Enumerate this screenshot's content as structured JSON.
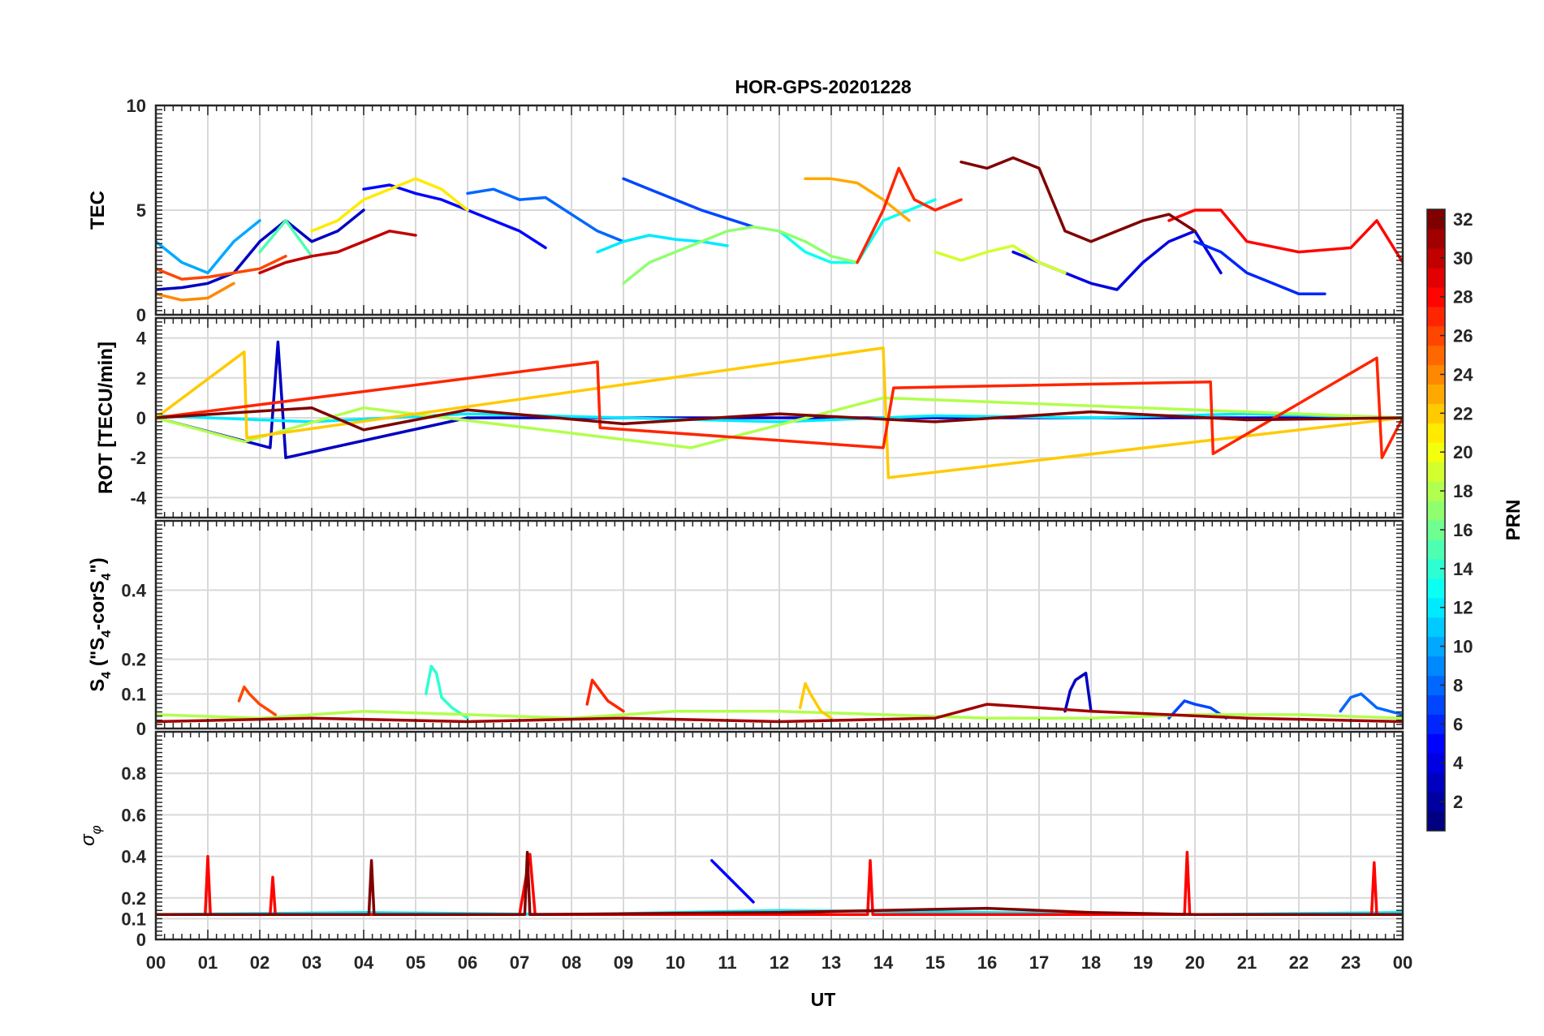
{
  "chart_data": {
    "type": "line",
    "title": "HOR-GPS-20201228",
    "xlabel": "UT",
    "x_ticks": [
      "00",
      "01",
      "02",
      "03",
      "04",
      "05",
      "06",
      "07",
      "08",
      "09",
      "10",
      "11",
      "12",
      "13",
      "14",
      "15",
      "16",
      "17",
      "18",
      "19",
      "20",
      "21",
      "22",
      "23",
      "00"
    ],
    "xlim": [
      0,
      24
    ],
    "grid": true,
    "colorbar": {
      "label": "PRN",
      "range": [
        1,
        32
      ],
      "ticks": [
        "2",
        "4",
        "6",
        "8",
        "10",
        "12",
        "14",
        "16",
        "18",
        "20",
        "22",
        "24",
        "26",
        "28",
        "30",
        "32"
      ],
      "colormap": "jet"
    },
    "panels": [
      {
        "ylabel": "TEC",
        "ylim": [
          0,
          10
        ],
        "yticks": [
          "0",
          "5",
          "10"
        ],
        "series": [
          {
            "prn": 3,
            "x": [
              0.0,
              0.5,
              1.0,
              1.5,
              2.0,
              2.5,
              3.0,
              3.5,
              4.0
            ],
            "y": [
              1.2,
              1.3,
              1.5,
              2.0,
              3.5,
              4.5,
              3.5,
              4.0,
              5.0
            ]
          },
          {
            "prn": 5,
            "x": [
              4.0,
              4.5,
              5.0,
              5.5,
              6.0,
              6.5,
              7.0,
              7.5
            ],
            "y": [
              6.0,
              6.2,
              5.8,
              5.5,
              5.0,
              4.5,
              4.0,
              3.2
            ]
          },
          {
            "prn": 8,
            "x": [
              6.0,
              6.5,
              7.0,
              7.5,
              8.0,
              8.5,
              9.0
            ],
            "y": [
              5.8,
              6.0,
              5.5,
              5.6,
              4.8,
              4.0,
              3.5
            ]
          },
          {
            "prn": 7,
            "x": [
              9.0,
              9.5,
              10.0,
              10.5,
              11.0,
              11.5
            ],
            "y": [
              6.5,
              6.0,
              5.5,
              5.0,
              4.6,
              4.2
            ]
          },
          {
            "prn": 4,
            "x": [
              16.5,
              17.0,
              17.5,
              18.0,
              18.5,
              19.0,
              19.5,
              20.0,
              20.5
            ],
            "y": [
              3.0,
              2.5,
              2.0,
              1.5,
              1.2,
              2.5,
              3.5,
              4.0,
              2.0
            ]
          },
          {
            "prn": 6,
            "x": [
              20.0,
              20.5,
              21.0,
              21.5,
              22.0,
              22.5
            ],
            "y": [
              3.5,
              3.0,
              2.0,
              1.5,
              1.0,
              1.0
            ]
          },
          {
            "prn": 10,
            "x": [
              0.0,
              0.5,
              1.0,
              1.5,
              2.0
            ],
            "y": [
              3.5,
              2.5,
              2.0,
              3.5,
              4.5
            ]
          },
          {
            "prn": 12,
            "x": [
              8.5,
              9.0,
              9.5,
              10.0,
              10.5,
              11.0
            ],
            "y": [
              3.0,
              3.5,
              3.8,
              3.6,
              3.5,
              3.3
            ]
          },
          {
            "prn": 13,
            "x": [
              12.0,
              12.5,
              13.0,
              13.5,
              14.0,
              14.5,
              15.0
            ],
            "y": [
              4.0,
              3.0,
              2.5,
              2.5,
              4.5,
              5.0,
              5.5
            ]
          },
          {
            "prn": 15,
            "x": [
              2.0,
              2.5,
              3.0
            ],
            "y": [
              3.0,
              4.5,
              2.8
            ]
          },
          {
            "prn": 17,
            "x": [
              9.0,
              9.5,
              10.0,
              10.5,
              11.0,
              11.5,
              12.0,
              12.5,
              13.0,
              13.5
            ],
            "y": [
              1.5,
              2.5,
              3.0,
              3.5,
              4.0,
              4.2,
              4.0,
              3.5,
              2.8,
              2.5
            ]
          },
          {
            "prn": 19,
            "x": [
              15.0,
              15.5,
              16.0,
              16.5,
              17.0,
              17.5
            ],
            "y": [
              3.0,
              2.6,
              3.0,
              3.3,
              2.5,
              2.0
            ]
          },
          {
            "prn": 21,
            "x": [
              3.0,
              3.5,
              4.0,
              4.5,
              5.0,
              5.5,
              6.0
            ],
            "y": [
              4.0,
              4.5,
              5.5,
              6.0,
              6.5,
              6.0,
              5.0
            ]
          },
          {
            "prn": 23,
            "x": [
              12.5,
              13.0,
              13.5,
              14.0,
              14.5
            ],
            "y": [
              6.5,
              6.5,
              6.3,
              5.5,
              4.5
            ]
          },
          {
            "prn": 24,
            "x": [
              0.0,
              0.5,
              1.0,
              1.5
            ],
            "y": [
              1.0,
              0.7,
              0.8,
              1.5
            ]
          },
          {
            "prn": 26,
            "x": [
              0.0,
              0.5,
              1.0,
              1.5,
              2.0,
              2.5
            ],
            "y": [
              2.2,
              1.7,
              1.8,
              2.0,
              2.2,
              2.8
            ]
          },
          {
            "prn": 27,
            "x": [
              13.5,
              14.0,
              14.3,
              14.6,
              15.0,
              15.5
            ],
            "y": [
              2.5,
              5.0,
              7.0,
              5.5,
              5.0,
              5.5
            ]
          },
          {
            "prn": 28,
            "x": [
              19.5,
              20.0,
              20.5,
              21.0,
              22.0,
              23.0,
              23.5,
              24.0
            ],
            "y": [
              4.5,
              5.0,
              5.0,
              3.5,
              3.0,
              3.2,
              4.5,
              2.5
            ]
          },
          {
            "prn": 30,
            "x": [
              2.0,
              2.5,
              3.0,
              3.5,
              4.0,
              4.5,
              5.0
            ],
            "y": [
              2.0,
              2.5,
              2.8,
              3.0,
              3.5,
              4.0,
              3.8
            ]
          },
          {
            "prn": 32,
            "x": [
              15.5,
              16.0,
              16.5,
              17.0,
              17.5,
              18.0,
              18.5,
              19.0,
              19.5,
              20.0
            ],
            "y": [
              7.3,
              7.0,
              7.5,
              7.0,
              4.0,
              3.5,
              4.0,
              4.5,
              4.8,
              4.0
            ]
          }
        ]
      },
      {
        "ylabel": "ROT [TECU/min]",
        "ylim": [
          -5,
          5
        ],
        "yticks": [
          "-4",
          "-2",
          "0",
          "2",
          "4"
        ],
        "series": [
          {
            "prn": 3,
            "x": [
              0.0,
              2.2,
              2.35,
              2.5,
              6.0,
              12.0,
              18.0,
              24.0
            ],
            "y": [
              0.0,
              -1.5,
              3.8,
              -2.0,
              0.0,
              0.0,
              0.0,
              0.0
            ]
          },
          {
            "prn": 12,
            "x": [
              0.0,
              3.0,
              6.0,
              9.0,
              12.0,
              15.0,
              18.0,
              21.0,
              24.0
            ],
            "y": [
              0.1,
              -0.2,
              0.2,
              0.0,
              -0.2,
              0.1,
              0.0,
              0.2,
              0.0
            ]
          },
          {
            "prn": 18,
            "x": [
              0.0,
              1.7,
              4.0,
              10.3,
              14.0,
              24.0
            ],
            "y": [
              0.0,
              -1.2,
              0.5,
              -1.5,
              1.0,
              0.0
            ]
          },
          {
            "prn": 22,
            "x": [
              0.0,
              1.7,
              1.75,
              14.0,
              14.1,
              24.0
            ],
            "y": [
              0.0,
              3.3,
              -1.0,
              3.5,
              -3.0,
              0.0
            ]
          },
          {
            "prn": 27,
            "x": [
              0.0,
              8.5,
              8.55,
              14.0,
              14.2,
              20.3,
              20.35,
              23.5,
              23.6,
              24.0
            ],
            "y": [
              0.0,
              2.8,
              -0.5,
              -1.5,
              1.5,
              1.8,
              -1.8,
              3.0,
              -2.0,
              0.0
            ]
          },
          {
            "prn": 32,
            "x": [
              0.0,
              3.0,
              4.0,
              6.0,
              9.0,
              12.0,
              15.0,
              18.0,
              21.0,
              24.0
            ],
            "y": [
              0.0,
              0.5,
              -0.6,
              0.4,
              -0.3,
              0.2,
              -0.2,
              0.3,
              -0.1,
              0.0
            ]
          }
        ]
      },
      {
        "ylabel": "S4 (\"S4-corS4\")",
        "ylabel_parts": [
          "S",
          "4",
          " (\"S",
          "4",
          "-corS",
          "4",
          "\")"
        ],
        "ylim": [
          0,
          0.6
        ],
        "yticks": [
          "0",
          "0.1",
          "0.2",
          "0.4"
        ],
        "series": [
          {
            "prn": 3,
            "x": [
              17.5,
              17.6,
              17.7,
              17.8,
              17.9,
              18.0
            ],
            "y": [
              0.05,
              0.11,
              0.14,
              0.15,
              0.16,
              0.05
            ]
          },
          {
            "prn": 7,
            "x": [
              19.5,
              19.8,
              20.0,
              20.3,
              20.6
            ],
            "y": [
              0.03,
              0.08,
              0.07,
              0.06,
              0.03
            ]
          },
          {
            "prn": 8,
            "x": [
              22.8,
              23.0,
              23.2,
              23.5,
              24.0
            ],
            "y": [
              0.05,
              0.09,
              0.1,
              0.06,
              0.04
            ]
          },
          {
            "prn": 14,
            "x": [
              5.2,
              5.3,
              5.4,
              5.5,
              5.7,
              6.0
            ],
            "y": [
              0.1,
              0.18,
              0.16,
              0.09,
              0.06,
              0.03
            ]
          },
          {
            "prn": 18,
            "x": [
              0.0,
              2.0,
              4.0,
              6.0,
              8.0,
              10.0,
              12.0,
              14.0,
              16.0,
              18.0,
              20.0,
              22.0,
              24.0
            ],
            "y": [
              0.04,
              0.03,
              0.05,
              0.04,
              0.03,
              0.05,
              0.05,
              0.04,
              0.03,
              0.03,
              0.04,
              0.04,
              0.03
            ]
          },
          {
            "prn": 22,
            "x": [
              12.4,
              12.5,
              12.6,
              12.8,
              13.0
            ],
            "y": [
              0.06,
              0.13,
              0.1,
              0.05,
              0.03
            ]
          },
          {
            "prn": 26,
            "x": [
              1.6,
              1.7,
              1.8,
              2.0,
              2.3
            ],
            "y": [
              0.08,
              0.12,
              0.1,
              0.07,
              0.04
            ]
          },
          {
            "prn": 27,
            "x": [
              8.3,
              8.4,
              8.5,
              8.7,
              9.0
            ],
            "y": [
              0.07,
              0.14,
              0.12,
              0.08,
              0.05
            ]
          },
          {
            "prn": 31,
            "x": [
              0.0,
              3.0,
              6.0,
              9.0,
              12.0,
              15.0,
              16.0,
              17.0,
              18.0,
              21.0,
              24.0
            ],
            "y": [
              0.02,
              0.03,
              0.02,
              0.03,
              0.02,
              0.03,
              0.07,
              0.06,
              0.05,
              0.03,
              0.02
            ]
          }
        ]
      },
      {
        "ylabel": "σφ",
        "ylim": [
          0,
          1
        ],
        "yticks": [
          "0",
          "0.1",
          "0.2",
          "0.4",
          "0.6",
          "0.8"
        ],
        "series": [
          {
            "prn": 5,
            "x": [
              10.7,
              11.5
            ],
            "y": [
              0.38,
              0.18
            ]
          },
          {
            "prn": 12,
            "x": [
              0.0,
              4.0,
              8.0,
              12.0,
              16.0,
              20.0,
              24.0
            ],
            "y": [
              0.12,
              0.13,
              0.12,
              0.14,
              0.13,
              0.12,
              0.13
            ]
          },
          {
            "prn": 28,
            "x": [
              0.0,
              0.95,
              1.0,
              1.05,
              2.2,
              2.25,
              2.3,
              7.0,
              7.2,
              7.3,
              13.7,
              13.75,
              13.8,
              19.8,
              19.85,
              19.9,
              23.4,
              23.45,
              23.5,
              24.0
            ],
            "y": [
              0.12,
              0.12,
              0.4,
              0.12,
              0.12,
              0.3,
              0.12,
              0.12,
              0.41,
              0.12,
              0.12,
              0.38,
              0.12,
              0.12,
              0.42,
              0.12,
              0.12,
              0.37,
              0.12,
              0.12
            ]
          },
          {
            "prn": 32,
            "x": [
              0.0,
              4.1,
              4.15,
              4.2,
              7.1,
              7.15,
              7.2,
              12.0,
              16.0,
              18.0,
              20.0,
              24.0
            ],
            "y": [
              0.12,
              0.12,
              0.38,
              0.12,
              0.12,
              0.42,
              0.12,
              0.13,
              0.15,
              0.13,
              0.12,
              0.12
            ]
          }
        ]
      }
    ]
  }
}
